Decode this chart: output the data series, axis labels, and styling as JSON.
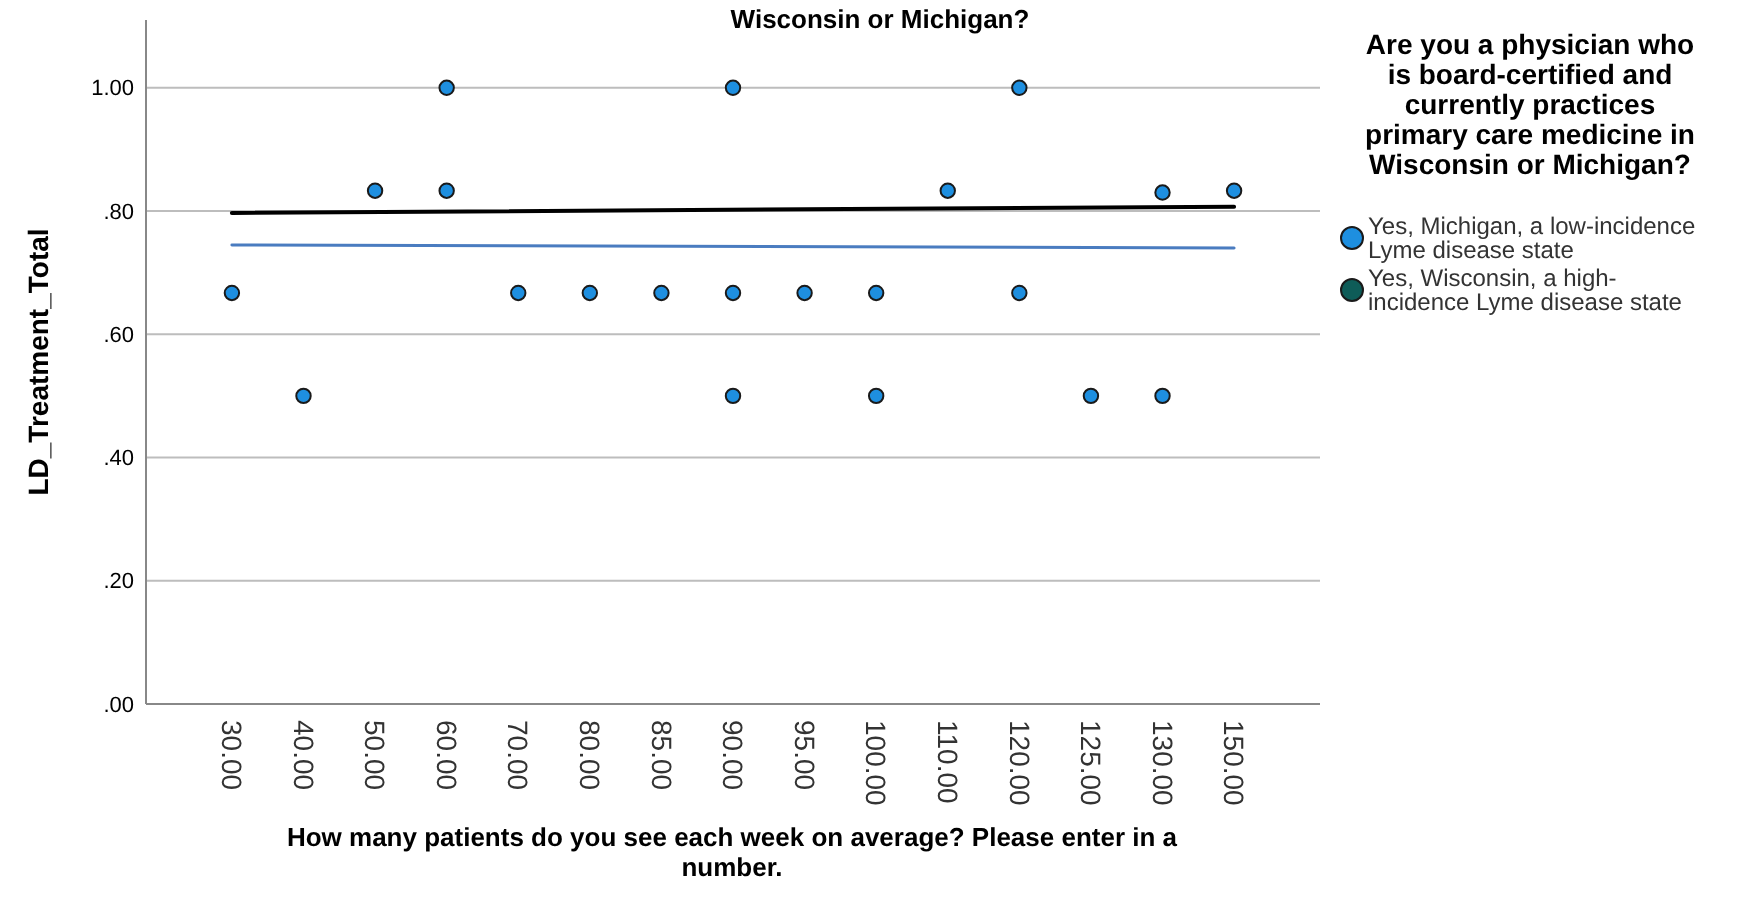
{
  "chart_data": {
    "type": "scatter",
    "title": "Wisconsin or Michigan?",
    "xlabel": "How many patients do you see each week on average? Please enter in a number.",
    "ylabel": "LD_Treatment_Total",
    "legend_title": "Are you a physician who is board-certified and currently practices primary care medicine in Wisconsin or Michigan?",
    "categories": [
      "30.00",
      "40.00",
      "50.00",
      "60.00",
      "70.00",
      "80.00",
      "85.00",
      "90.00",
      "95.00",
      "100.00",
      "110.00",
      "120.00",
      "125.00",
      "130.00",
      "150.00"
    ],
    "ylim": [
      0,
      1.11
    ],
    "yticks": [
      {
        "value": 0,
        "label": ".00"
      },
      {
        "value": 0.2,
        "label": ".20"
      },
      {
        "value": 0.4,
        "label": ".40"
      },
      {
        "value": 0.6,
        "label": ".60"
      },
      {
        "value": 0.8,
        "label": ".80"
      },
      {
        "value": 1,
        "label": "1.00"
      }
    ],
    "grid": "y",
    "legend": "right",
    "marker": "circle",
    "series": [
      {
        "name": "Yes, Michigan, a low-incidence Lyme disease state",
        "color": "#1e8fe0",
        "x": [
          "30.00",
          "40.00",
          "50.00",
          "60.00",
          "60.00",
          "70.00",
          "80.00",
          "85.00",
          "90.00",
          "90.00",
          "90.00",
          "95.00",
          "100.00",
          "100.00",
          "110.00",
          "120.00",
          "120.00",
          "125.00",
          "130.00",
          "130.00",
          "150.00"
        ],
        "values": [
          0.667,
          0.5,
          0.833,
          1.0,
          0.833,
          0.667,
          0.667,
          0.667,
          1.0,
          0.667,
          0.5,
          0.667,
          0.667,
          0.5,
          0.833,
          1.0,
          0.667,
          0.5,
          0.83,
          0.5,
          0.833
        ]
      },
      {
        "name": "Yes, Wisconsin, a high-incidence Lyme disease state",
        "color": "#0e5c58",
        "values": [
          null,
          null,
          null,
          null,
          null,
          null,
          null,
          null,
          null,
          null,
          null,
          null,
          null,
          null,
          null
        ]
      },
      {
        "type": "line",
        "marker": "none",
        "color": "#000000",
        "x": [
          "30.00",
          "150.00"
        ],
        "values": [
          0.797,
          0.807
        ]
      },
      {
        "type": "line",
        "marker": "none",
        "color": "#4a7cc0",
        "x": [
          "30.00",
          "150.00"
        ],
        "values": [
          0.745,
          0.74
        ]
      }
    ]
  }
}
